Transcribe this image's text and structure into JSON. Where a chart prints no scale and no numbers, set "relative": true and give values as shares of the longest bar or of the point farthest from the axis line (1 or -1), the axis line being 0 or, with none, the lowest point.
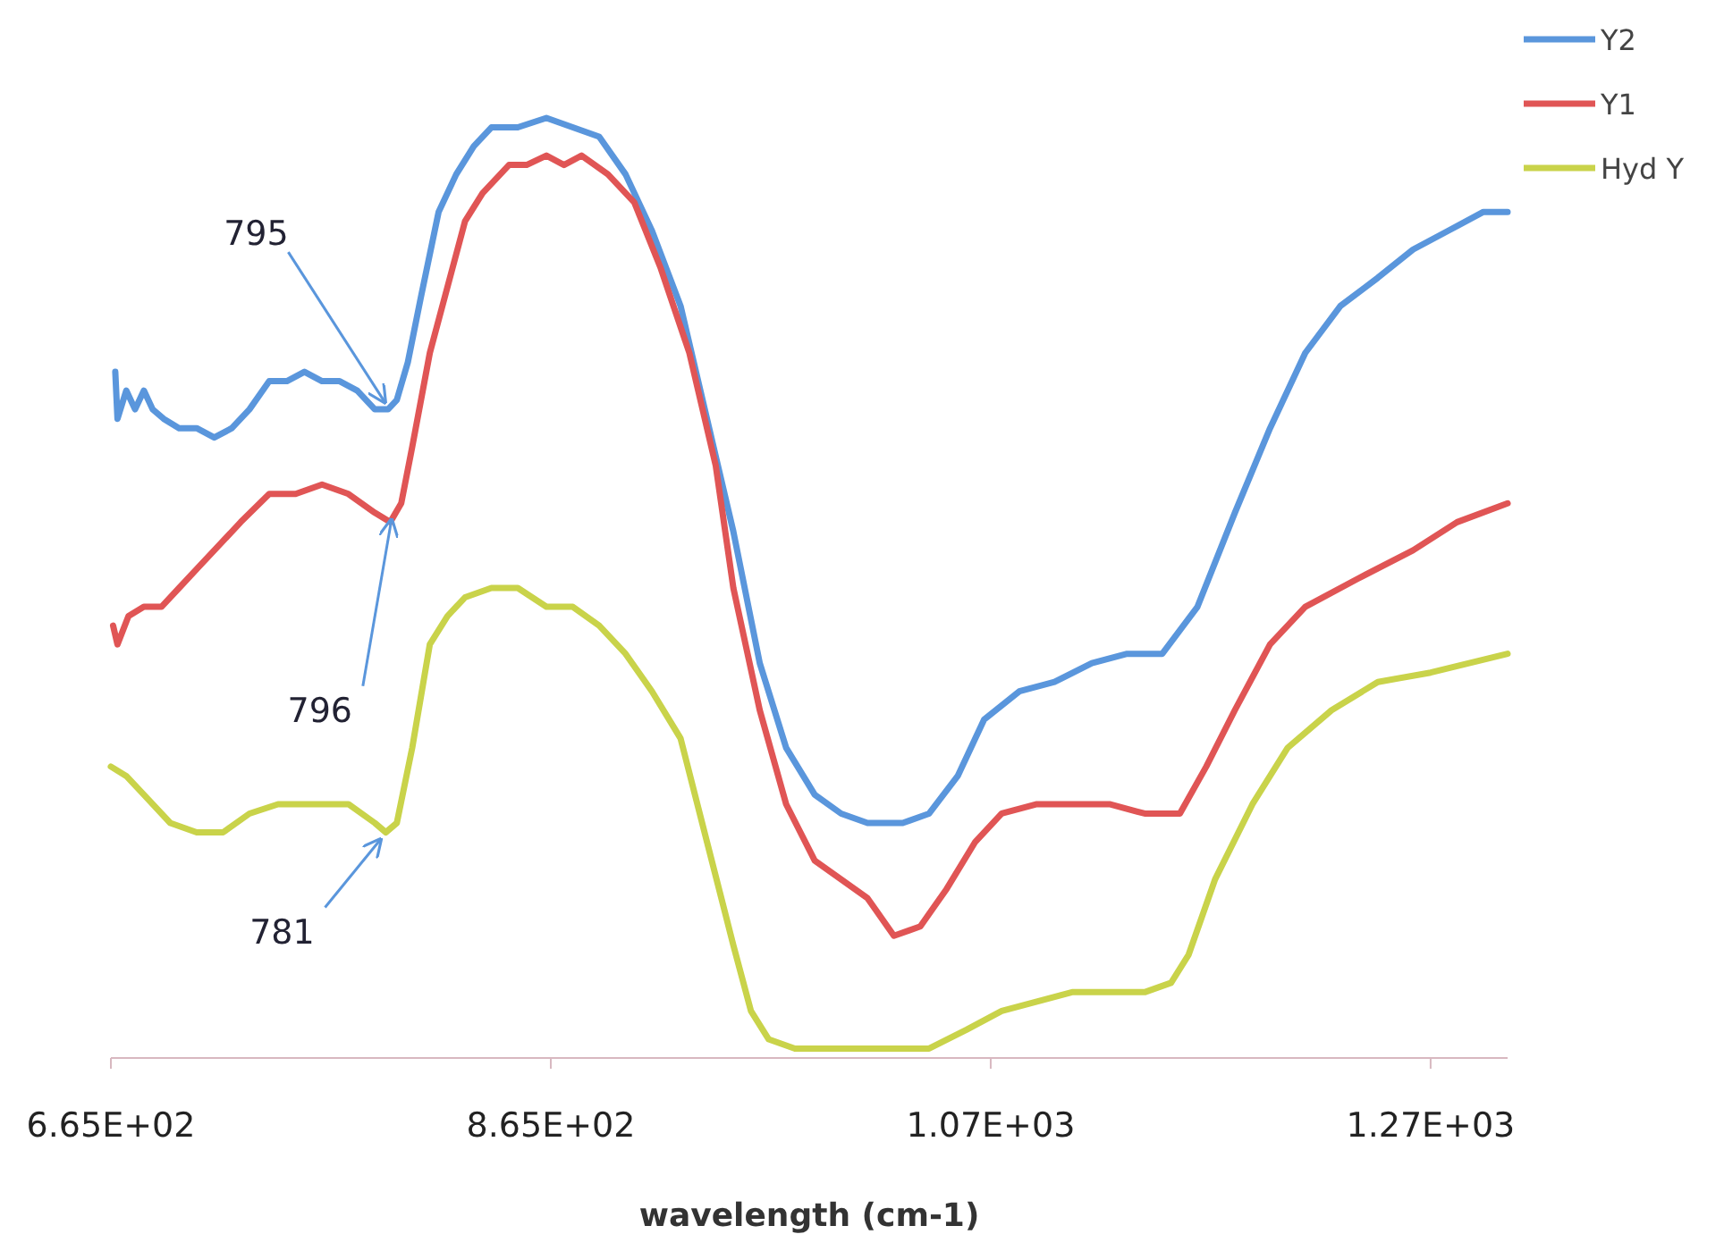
{
  "chart_data": {
    "type": "line",
    "relative": true,
    "xlabel": "wavelength (cm-1)",
    "xlim": [
      665,
      1300
    ],
    "xticks": [
      {
        "value": 665,
        "label": "6.65E+02"
      },
      {
        "value": 865,
        "label": "8.65E+02"
      },
      {
        "value": 1065,
        "label": "1.07E+03"
      },
      {
        "value": 1265,
        "label": "1.27E+03"
      }
    ],
    "legend": "top right",
    "grid": false,
    "marker": "none",
    "line_style": "solid",
    "annotations": [
      {
        "text": "795",
        "x": 792,
        "y": 0.69
      },
      {
        "text": "796",
        "x": 795,
        "y": 0.58
      },
      {
        "text": "781",
        "x": 790,
        "y": 0.24
      }
    ],
    "series": [
      {
        "name": "Y2",
        "color": "#5a96dc",
        "x": [
          667,
          668,
          672,
          676,
          680,
          684,
          689,
          696,
          704,
          712,
          720,
          728,
          737,
          745,
          753,
          761,
          769,
          777,
          785,
          791,
          795,
          800,
          806,
          814,
          822,
          830,
          838,
          850,
          863,
          875,
          887,
          899,
          911,
          924,
          936,
          948,
          960,
          972,
          985,
          997,
          1009,
          1025,
          1037,
          1050,
          1062,
          1078,
          1094,
          1111,
          1127,
          1143,
          1159,
          1176,
          1192,
          1208,
          1224,
          1241,
          1257,
          1273,
          1289,
          1300
        ],
        "values": [
          0.73,
          0.68,
          0.71,
          0.69,
          0.71,
          0.69,
          0.68,
          0.67,
          0.67,
          0.66,
          0.67,
          0.69,
          0.72,
          0.72,
          0.73,
          0.72,
          0.72,
          0.71,
          0.69,
          0.69,
          0.7,
          0.74,
          0.81,
          0.9,
          0.94,
          0.97,
          0.99,
          0.99,
          1,
          0.99,
          0.98,
          0.94,
          0.88,
          0.8,
          0.68,
          0.56,
          0.42,
          0.33,
          0.28,
          0.26,
          0.25,
          0.25,
          0.26,
          0.3,
          0.36,
          0.39,
          0.4,
          0.42,
          0.43,
          0.43,
          0.48,
          0.58,
          0.67,
          0.75,
          0.8,
          0.83,
          0.86,
          0.88,
          0.9,
          0.9
        ]
      },
      {
        "name": "Y1",
        "color": "#e05555",
        "x": [
          666,
          668,
          673,
          680,
          688,
          696,
          704,
          712,
          724,
          737,
          749,
          761,
          773,
          785,
          792,
          797,
          802,
          810,
          818,
          826,
          834,
          846,
          854,
          863,
          871,
          879,
          891,
          903,
          915,
          928,
          940,
          948,
          960,
          972,
          985,
          997,
          1009,
          1021,
          1033,
          1045,
          1058,
          1070,
          1086,
          1102,
          1119,
          1135,
          1151,
          1163,
          1176,
          1192,
          1208,
          1232,
          1257,
          1277,
          1300
        ],
        "values": [
          0.46,
          0.44,
          0.47,
          0.48,
          0.48,
          0.5,
          0.52,
          0.54,
          0.57,
          0.6,
          0.6,
          0.61,
          0.6,
          0.58,
          0.57,
          0.59,
          0.65,
          0.75,
          0.82,
          0.89,
          0.92,
          0.95,
          0.95,
          0.96,
          0.95,
          0.96,
          0.94,
          0.91,
          0.84,
          0.75,
          0.63,
          0.5,
          0.37,
          0.27,
          0.21,
          0.19,
          0.17,
          0.13,
          0.14,
          0.18,
          0.23,
          0.26,
          0.27,
          0.27,
          0.27,
          0.26,
          0.26,
          0.31,
          0.37,
          0.44,
          0.48,
          0.51,
          0.54,
          0.57,
          0.59
        ]
      },
      {
        "name": "Hyd Y",
        "color": "#c9d34a",
        "x": [
          665,
          672,
          680,
          692,
          704,
          716,
          728,
          741,
          757,
          773,
          785,
          790,
          795,
          802,
          810,
          818,
          826,
          838,
          850,
          863,
          875,
          887,
          899,
          911,
          924,
          936,
          948,
          956,
          964,
          976,
          997,
          1021,
          1037,
          1054,
          1070,
          1086,
          1102,
          1119,
          1135,
          1147,
          1155,
          1167,
          1184,
          1200,
          1220,
          1241,
          1265,
          1300
        ],
        "values": [
          0.31,
          0.3,
          0.28,
          0.25,
          0.24,
          0.24,
          0.26,
          0.27,
          0.27,
          0.27,
          0.25,
          0.24,
          0.25,
          0.33,
          0.44,
          0.47,
          0.49,
          0.5,
          0.5,
          0.48,
          0.48,
          0.46,
          0.43,
          0.39,
          0.34,
          0.23,
          0.12,
          0.05,
          0.02,
          0.01,
          0.01,
          0.01,
          0.01,
          0.03,
          0.05,
          0.06,
          0.07,
          0.07,
          0.07,
          0.08,
          0.11,
          0.19,
          0.27,
          0.33,
          0.37,
          0.4,
          0.41,
          0.43
        ]
      }
    ]
  }
}
